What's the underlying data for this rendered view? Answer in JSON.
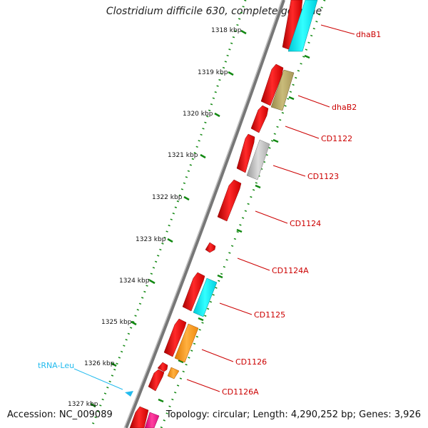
{
  "title": "Clostridium difficile 630, complete genome",
  "footer": {
    "accession": "Accession: NC_009089",
    "summary": "Topology: circular; Length: 4,290,252 bp; Genes: 3,926"
  },
  "kbp_labels": [
    "1318 kbp",
    "1319 kbp",
    "1320 kbp",
    "1321 kbp",
    "1322 kbp",
    "1323 kbp",
    "1324 kbp",
    "1325 kbp",
    "1326 kbp",
    "1327 kbp"
  ],
  "gene_labels": [
    "dhaB1",
    "dhaB2",
    "CD1122",
    "CD1123",
    "CD1124",
    "CD1124A",
    "CD1125",
    "CD1126",
    "CD1126A"
  ],
  "trna_label": "tRNA-Leu",
  "colors": {
    "cds": "#ff0000",
    "gene_label": "#cc0000",
    "trna": "#22bbee",
    "tick": "#118811",
    "backbone": "#888888"
  }
}
